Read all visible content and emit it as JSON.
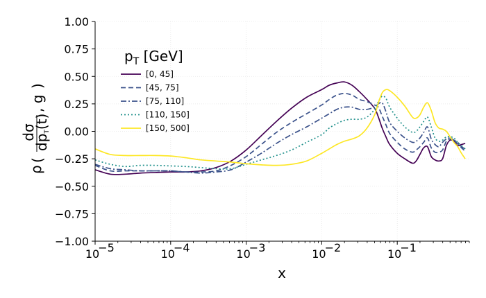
{
  "chart_data": {
    "type": "line",
    "xlabel": "x",
    "ylabel": "ρ(dσ/dp_T(t), g)",
    "ylabel_parts": {
      "rho": "ρ",
      "num": "dσ",
      "den_main": "dp",
      "den_sub": "T",
      "den_arg": "(t)",
      "tail": ", g"
    },
    "xscale": "log",
    "xlim": [
      1e-05,
      0.9
    ],
    "ylim": [
      -1.0,
      1.0
    ],
    "yticks": [
      -1.0,
      -0.75,
      -0.5,
      -0.25,
      0.0,
      0.25,
      0.5,
      0.75,
      1.0
    ],
    "ytick_labels": [
      "−1.00",
      "−0.75",
      "−0.50",
      "−0.25",
      "0.00",
      "0.25",
      "0.50",
      "0.75",
      "1.00"
    ],
    "xticks": [
      -5,
      -4,
      -3,
      -2,
      -1
    ],
    "xtick_labels": [
      "10",
      "10",
      "10",
      "10",
      "10"
    ],
    "xtick_exponents": [
      "−5",
      "−4",
      "−3",
      "−2",
      "−1"
    ],
    "grid": true,
    "legend": {
      "title_main": "p",
      "title_sub": "T",
      "title_unit": " [GeV]",
      "placement": "upper-left"
    },
    "series": [
      {
        "name": "[0, 45]",
        "color": "#440154",
        "dash": "",
        "points": [
          [
            -5,
            -0.35
          ],
          [
            -4.8,
            -0.39
          ],
          [
            -4.6,
            -0.39
          ],
          [
            -4.4,
            -0.38
          ],
          [
            -4.2,
            -0.375
          ],
          [
            -4,
            -0.37
          ],
          [
            -3.8,
            -0.37
          ],
          [
            -3.6,
            -0.36
          ],
          [
            -3.4,
            -0.33
          ],
          [
            -3.2,
            -0.27
          ],
          [
            -3.0,
            -0.17
          ],
          [
            -2.8,
            -0.04
          ],
          [
            -2.6,
            0.09
          ],
          [
            -2.4,
            0.21
          ],
          [
            -2.2,
            0.31
          ],
          [
            -2.0,
            0.38
          ],
          [
            -1.9,
            0.42
          ],
          [
            -1.8,
            0.44
          ],
          [
            -1.7,
            0.45
          ],
          [
            -1.6,
            0.42
          ],
          [
            -1.5,
            0.36
          ],
          [
            -1.4,
            0.29
          ],
          [
            -1.3,
            0.21
          ],
          [
            -1.25,
            0.13
          ],
          [
            -1.2,
            0.03
          ],
          [
            -1.15,
            -0.05
          ],
          [
            -1.1,
            -0.12
          ],
          [
            -1.0,
            -0.2
          ],
          [
            -0.9,
            -0.25
          ],
          [
            -0.8,
            -0.29
          ],
          [
            -0.75,
            -0.27
          ],
          [
            -0.7,
            -0.21
          ],
          [
            -0.65,
            -0.15
          ],
          [
            -0.6,
            -0.14
          ],
          [
            -0.55,
            -0.23
          ],
          [
            -0.5,
            -0.26
          ],
          [
            -0.45,
            -0.27
          ],
          [
            -0.4,
            -0.25
          ],
          [
            -0.35,
            -0.13
          ],
          [
            -0.3,
            -0.08
          ],
          [
            -0.25,
            -0.09
          ],
          [
            -0.2,
            -0.13
          ],
          [
            -0.15,
            -0.12
          ],
          [
            -0.1,
            -0.11
          ]
        ]
      },
      {
        "name": "[45, 75]",
        "color": "#3b528b",
        "dash": "7,4",
        "points": [
          [
            -5,
            -0.31
          ],
          [
            -4.8,
            -0.36
          ],
          [
            -4.6,
            -0.36
          ],
          [
            -4.4,
            -0.36
          ],
          [
            -4.2,
            -0.36
          ],
          [
            -4,
            -0.36
          ],
          [
            -3.8,
            -0.37
          ],
          [
            -3.6,
            -0.37
          ],
          [
            -3.4,
            -0.36
          ],
          [
            -3.2,
            -0.31
          ],
          [
            -3.0,
            -0.23
          ],
          [
            -2.8,
            -0.12
          ],
          [
            -2.6,
            -0.01
          ],
          [
            -2.4,
            0.08
          ],
          [
            -2.2,
            0.16
          ],
          [
            -2.0,
            0.24
          ],
          [
            -1.9,
            0.29
          ],
          [
            -1.8,
            0.33
          ],
          [
            -1.7,
            0.345
          ],
          [
            -1.6,
            0.33
          ],
          [
            -1.5,
            0.29
          ],
          [
            -1.4,
            0.27
          ],
          [
            -1.3,
            0.24
          ],
          [
            -1.25,
            0.22
          ],
          [
            -1.2,
            0.14
          ],
          [
            -1.15,
            0.06
          ],
          [
            -1.1,
            -0.02
          ],
          [
            -1.0,
            -0.1
          ],
          [
            -0.9,
            -0.16
          ],
          [
            -0.8,
            -0.19
          ],
          [
            -0.75,
            -0.17
          ],
          [
            -0.7,
            -0.14
          ],
          [
            -0.65,
            -0.1
          ],
          [
            -0.6,
            -0.06
          ],
          [
            -0.55,
            -0.15
          ],
          [
            -0.5,
            -0.19
          ],
          [
            -0.45,
            -0.19
          ],
          [
            -0.4,
            -0.17
          ],
          [
            -0.35,
            -0.09
          ],
          [
            -0.3,
            -0.07
          ],
          [
            -0.25,
            -0.09
          ],
          [
            -0.2,
            -0.11
          ],
          [
            -0.15,
            -0.15
          ],
          [
            -0.1,
            -0.18
          ]
        ]
      },
      {
        "name": "[75, 110]",
        "color": "#3b528b",
        "dash": "8,3,2,3",
        "points": [
          [
            -5,
            -0.3
          ],
          [
            -4.8,
            -0.34
          ],
          [
            -4.6,
            -0.35
          ],
          [
            -4.4,
            -0.36
          ],
          [
            -4.2,
            -0.36
          ],
          [
            -4,
            -0.36
          ],
          [
            -3.8,
            -0.37
          ],
          [
            -3.6,
            -0.38
          ],
          [
            -3.4,
            -0.37
          ],
          [
            -3.2,
            -0.35
          ],
          [
            -3.0,
            -0.28
          ],
          [
            -2.8,
            -0.2
          ],
          [
            -2.6,
            -0.11
          ],
          [
            -2.4,
            -0.03
          ],
          [
            -2.2,
            0.04
          ],
          [
            -2.0,
            0.12
          ],
          [
            -1.9,
            0.16
          ],
          [
            -1.8,
            0.2
          ],
          [
            -1.7,
            0.22
          ],
          [
            -1.6,
            0.22
          ],
          [
            -1.5,
            0.2
          ],
          [
            -1.4,
            0.2
          ],
          [
            -1.3,
            0.22
          ],
          [
            -1.25,
            0.25
          ],
          [
            -1.2,
            0.26
          ],
          [
            -1.15,
            0.18
          ],
          [
            -1.1,
            0.08
          ],
          [
            -1.0,
            0.0
          ],
          [
            -0.9,
            -0.06
          ],
          [
            -0.8,
            -0.1
          ],
          [
            -0.75,
            -0.09
          ],
          [
            -0.7,
            -0.06
          ],
          [
            -0.65,
            -0.01
          ],
          [
            -0.6,
            0.04
          ],
          [
            -0.55,
            -0.07
          ],
          [
            -0.5,
            -0.12
          ],
          [
            -0.45,
            -0.14
          ],
          [
            -0.4,
            -0.1
          ],
          [
            -0.35,
            -0.07
          ],
          [
            -0.3,
            -0.06
          ],
          [
            -0.25,
            -0.08
          ],
          [
            -0.2,
            -0.1
          ],
          [
            -0.15,
            -0.14
          ],
          [
            -0.1,
            -0.16
          ]
        ]
      },
      {
        "name": "[110, 150]",
        "color": "#21918c",
        "dash": "2,3",
        "points": [
          [
            -5,
            -0.26
          ],
          [
            -4.8,
            -0.3
          ],
          [
            -4.6,
            -0.32
          ],
          [
            -4.4,
            -0.31
          ],
          [
            -4.2,
            -0.31
          ],
          [
            -4,
            -0.315
          ],
          [
            -3.8,
            -0.32
          ],
          [
            -3.6,
            -0.33
          ],
          [
            -3.4,
            -0.34
          ],
          [
            -3.2,
            -0.34
          ],
          [
            -3.0,
            -0.3
          ],
          [
            -2.8,
            -0.26
          ],
          [
            -2.6,
            -0.22
          ],
          [
            -2.4,
            -0.17
          ],
          [
            -2.2,
            -0.1
          ],
          [
            -2.0,
            -0.03
          ],
          [
            -1.9,
            0.03
          ],
          [
            -1.8,
            0.07
          ],
          [
            -1.7,
            0.1
          ],
          [
            -1.6,
            0.11
          ],
          [
            -1.5,
            0.11
          ],
          [
            -1.4,
            0.13
          ],
          [
            -1.3,
            0.2
          ],
          [
            -1.25,
            0.27
          ],
          [
            -1.2,
            0.32
          ],
          [
            -1.15,
            0.3
          ],
          [
            -1.1,
            0.22
          ],
          [
            -1.0,
            0.12
          ],
          [
            -0.9,
            0.04
          ],
          [
            -0.8,
            -0.01
          ],
          [
            -0.75,
            0.0
          ],
          [
            -0.7,
            0.04
          ],
          [
            -0.65,
            0.09
          ],
          [
            -0.6,
            0.13
          ],
          [
            -0.55,
            0.04
          ],
          [
            -0.5,
            -0.06
          ],
          [
            -0.45,
            -0.09
          ],
          [
            -0.4,
            -0.08
          ],
          [
            -0.35,
            -0.05
          ],
          [
            -0.3,
            -0.05
          ],
          [
            -0.25,
            -0.06
          ],
          [
            -0.2,
            -0.1
          ],
          [
            -0.15,
            -0.13
          ],
          [
            -0.1,
            -0.16
          ]
        ]
      },
      {
        "name": "[150, 500]",
        "color": "#fde725",
        "dash": "",
        "points": [
          [
            -5,
            -0.16
          ],
          [
            -4.8,
            -0.21
          ],
          [
            -4.6,
            -0.22
          ],
          [
            -4.4,
            -0.22
          ],
          [
            -4.2,
            -0.22
          ],
          [
            -4,
            -0.225
          ],
          [
            -3.8,
            -0.24
          ],
          [
            -3.6,
            -0.26
          ],
          [
            -3.4,
            -0.27
          ],
          [
            -3.2,
            -0.28
          ],
          [
            -3.0,
            -0.295
          ],
          [
            -2.8,
            -0.305
          ],
          [
            -2.6,
            -0.31
          ],
          [
            -2.4,
            -0.3
          ],
          [
            -2.2,
            -0.27
          ],
          [
            -2.0,
            -0.2
          ],
          [
            -1.9,
            -0.16
          ],
          [
            -1.8,
            -0.12
          ],
          [
            -1.7,
            -0.09
          ],
          [
            -1.6,
            -0.07
          ],
          [
            -1.5,
            -0.04
          ],
          [
            -1.4,
            0.03
          ],
          [
            -1.3,
            0.15
          ],
          [
            -1.25,
            0.26
          ],
          [
            -1.2,
            0.35
          ],
          [
            -1.15,
            0.38
          ],
          [
            -1.1,
            0.37
          ],
          [
            -1.0,
            0.31
          ],
          [
            -0.9,
            0.23
          ],
          [
            -0.8,
            0.13
          ],
          [
            -0.75,
            0.12
          ],
          [
            -0.7,
            0.15
          ],
          [
            -0.65,
            0.22
          ],
          [
            -0.6,
            0.26
          ],
          [
            -0.55,
            0.19
          ],
          [
            -0.5,
            0.08
          ],
          [
            -0.45,
            0.03
          ],
          [
            -0.4,
            0.02
          ],
          [
            -0.35,
            -0.0
          ],
          [
            -0.3,
            -0.05
          ],
          [
            -0.25,
            -0.1
          ],
          [
            -0.2,
            -0.14
          ],
          [
            -0.15,
            -0.2
          ],
          [
            -0.1,
            -0.25
          ]
        ]
      }
    ]
  }
}
